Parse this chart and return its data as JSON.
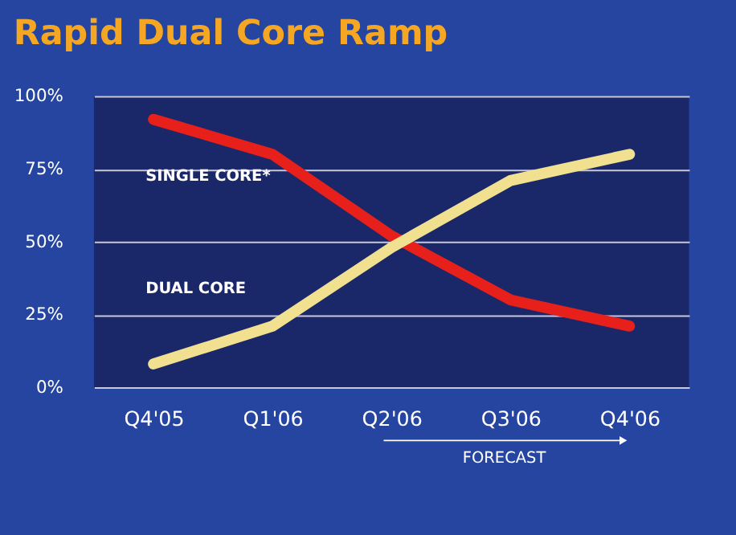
{
  "chart_data": {
    "type": "line",
    "title": "Rapid Dual Core Ramp",
    "categories": [
      "Q4'05",
      "Q1'06",
      "Q2'06",
      "Q3'06",
      "Q4'06"
    ],
    "series": [
      {
        "name": "SINGLE CORE*",
        "color": "#e8201c",
        "values": [
          92,
          80,
          52,
          30,
          21
        ]
      },
      {
        "name": "DUAL CORE",
        "color": "#f0e090",
        "values": [
          8,
          21,
          48,
          71,
          80
        ]
      }
    ],
    "ylim": [
      0,
      100
    ],
    "yticks": [
      {
        "value": 0,
        "label": "0%"
      },
      {
        "value": 25,
        "label": "25%"
      },
      {
        "value": 50,
        "label": "50%"
      },
      {
        "value": 75,
        "label": "75%"
      },
      {
        "value": 100,
        "label": "100%"
      }
    ],
    "grid": "y",
    "marker": "none",
    "line_style": "solid",
    "annotations": [
      "FORECAST"
    ]
  }
}
